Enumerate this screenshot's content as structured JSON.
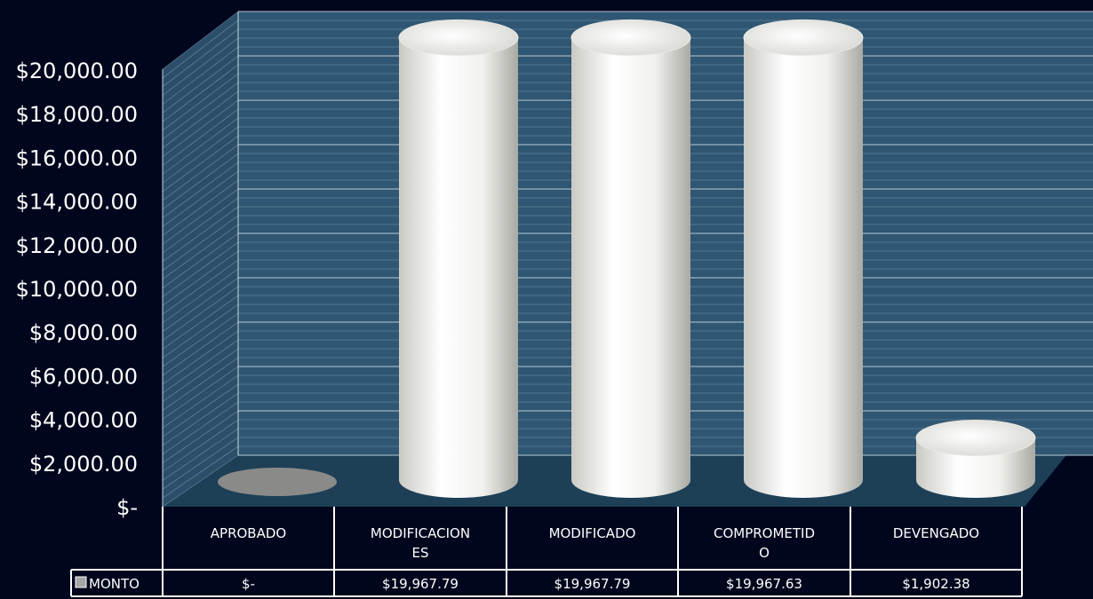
{
  "chart_data": {
    "type": "bar",
    "style": "3d-cylinder",
    "categories": [
      "APROBADO",
      "MODIFICACIONES",
      "MODIFICADO",
      "COMPROMETIDO",
      "DEVENGADO"
    ],
    "category_labels_wrapped": [
      [
        "APROBADO"
      ],
      [
        "MODIFICACION",
        "ES"
      ],
      [
        "MODIFICADO"
      ],
      [
        "COMPROMETID",
        "O"
      ],
      [
        "DEVENGADO"
      ]
    ],
    "series": [
      {
        "name": "MONTO",
        "values": [
          0,
          19967.79,
          19967.79,
          19967.63,
          1902.38
        ],
        "value_labels": [
          "$-",
          "$19,967.79",
          "$19,967.79",
          "$19,967.63",
          "$1,902.38"
        ]
      }
    ],
    "ylim": [
      0,
      20000
    ],
    "ytick_values": [
      0,
      2000,
      4000,
      6000,
      8000,
      10000,
      12000,
      14000,
      16000,
      18000,
      20000
    ],
    "ytick_labels": [
      "$-",
      "$2,000.00",
      "$4,000.00",
      "$6,000.00",
      "$8,000.00",
      "$10,000.00",
      "$12,000.00",
      "$14,000.00",
      "$16,000.00",
      "$18,000.00",
      "$20,000.00"
    ],
    "grid": true,
    "data_table": true,
    "colors": {
      "background": "#00061d",
      "wall": "#2f5672",
      "floor": "#1d4057",
      "gridline": "#c8d6e0",
      "bar": "#f2f2ef",
      "bar_shade": "#bdbdb8",
      "zero_disc": "#8a8a88",
      "table_border": "#ffffff",
      "legend_key": "#a6a6a6"
    }
  }
}
